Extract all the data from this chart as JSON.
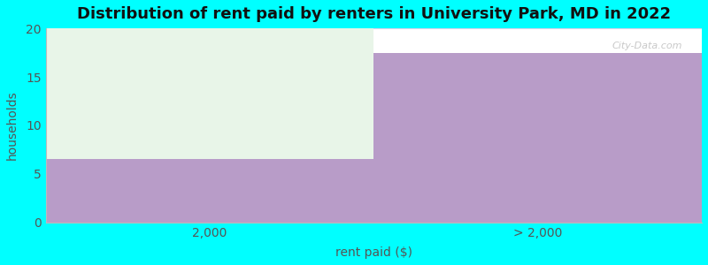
{
  "title": "Distribution of rent paid by renters in University Park, MD in 2022",
  "xlabel": "rent paid ($)",
  "ylabel": "households",
  "categories": [
    "2,000",
    "> 2,000"
  ],
  "bar_purple_values": [
    6.5,
    17.5
  ],
  "bar_green_values": [
    13.5,
    0
  ],
  "ylim": [
    0,
    20
  ],
  "yticks": [
    0,
    5,
    10,
    15,
    20
  ],
  "bar_color_purple": "#b89cc8",
  "bar_color_green": "#e8f5e8",
  "background_color": "#00ffff",
  "plot_bg_color": "#ffffff",
  "title_fontsize": 13,
  "axis_label_fontsize": 10,
  "tick_fontsize": 10,
  "watermark": "City-Data.com",
  "grid_color": "#e0d0e8"
}
